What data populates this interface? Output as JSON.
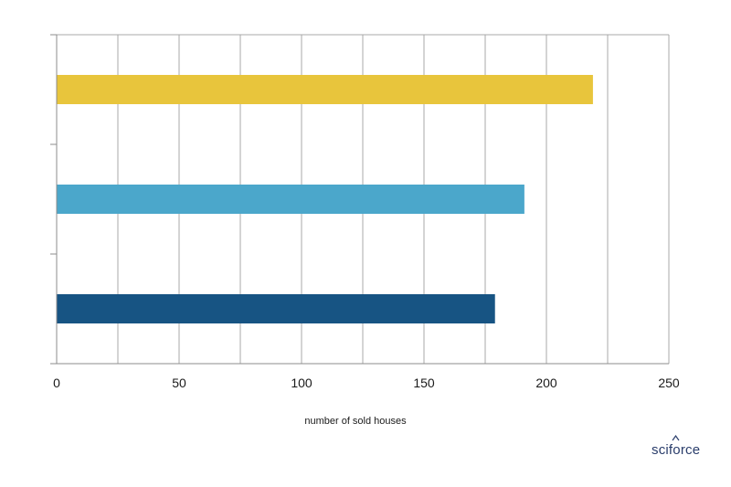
{
  "chart_data": {
    "type": "bar",
    "orientation": "horizontal",
    "categories": [
      "",
      "",
      ""
    ],
    "values": [
      219,
      191,
      179
    ],
    "bar_colors": [
      "#E8C53C",
      "#4BA7CB",
      "#175483"
    ],
    "xlabel": "number of sold houses",
    "ylabel": "",
    "xlim": [
      0,
      250
    ],
    "x_ticks": [
      0,
      50,
      100,
      150,
      200,
      250
    ],
    "x_grid_step": 25,
    "grid": true
  },
  "logo": {
    "text": "sciforce"
  }
}
